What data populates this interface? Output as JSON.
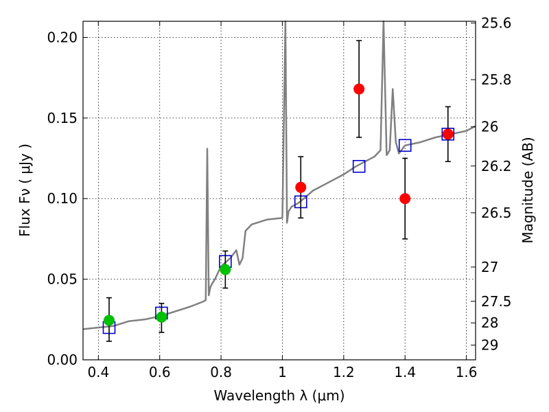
{
  "chart_data": {
    "type": "scatter",
    "xlabel": "Wavelength  λ (μm)",
    "ylabel": "Flux  Fν  ( μJy )",
    "y2label": "Magnitude (AB)",
    "xlim": [
      0.35,
      1.63
    ],
    "ylim": [
      0.0,
      0.21
    ],
    "grid": true,
    "x_ticks": [
      0.4,
      0.6,
      0.8,
      1.0,
      1.2,
      1.4,
      1.6
    ],
    "x_tick_labels": [
      "0.4",
      "0.6",
      "0.8",
      "1",
      "1.2",
      "1.4",
      "1.6"
    ],
    "y_ticks": [
      0.0,
      0.05,
      0.1,
      0.15,
      0.2
    ],
    "y_tick_labels": [
      "0.00",
      "0.05",
      "0.10",
      "0.15",
      "0.20"
    ],
    "mag_ticks": [
      25.6,
      25.8,
      26,
      26.2,
      26.5,
      27,
      27.5,
      28,
      29
    ],
    "mag_tick_labels": [
      "25.6",
      "25.8",
      "26",
      "26.2",
      "26.5",
      "27",
      "27.5",
      "28",
      "29"
    ],
    "colors": {
      "model_spectrum": "#808080",
      "model_photometry": "#0000cc",
      "detections": "#00c000",
      "upper_points": "#ff0000",
      "errorbars": "#000000"
    },
    "series": [
      {
        "kind": "model_spectrum",
        "x": [
          0.35,
          0.4,
          0.45,
          0.5,
          0.55,
          0.6,
          0.65,
          0.7,
          0.74,
          0.75,
          0.755,
          0.76,
          0.765,
          0.77,
          0.78,
          0.8,
          0.83,
          0.85,
          0.86,
          0.87,
          0.88,
          0.9,
          0.95,
          1.0,
          1.01,
          1.015,
          1.02,
          1.03,
          1.05,
          1.07,
          1.1,
          1.15,
          1.2,
          1.24,
          1.27,
          1.3,
          1.32,
          1.33,
          1.34,
          1.35,
          1.36,
          1.37,
          1.38,
          1.4,
          1.45,
          1.5,
          1.55,
          1.6,
          1.63
        ],
        "y": [
          0.019,
          0.02,
          0.021,
          0.024,
          0.025,
          0.027,
          0.03,
          0.033,
          0.036,
          0.037,
          0.131,
          0.04,
          0.045,
          0.047,
          0.05,
          0.058,
          0.063,
          0.068,
          0.059,
          0.063,
          0.08,
          0.084,
          0.087,
          0.088,
          0.21,
          0.085,
          0.092,
          0.095,
          0.097,
          0.1,
          0.105,
          0.11,
          0.115,
          0.12,
          0.123,
          0.126,
          0.13,
          0.21,
          0.127,
          0.13,
          0.168,
          0.135,
          0.128,
          0.133,
          0.135,
          0.138,
          0.14,
          0.142,
          0.145
        ]
      },
      {
        "kind": "model_photometry",
        "x": [
          0.435,
          0.606,
          0.814,
          1.06,
          1.25,
          1.4,
          1.54
        ],
        "y": [
          0.02,
          0.029,
          0.061,
          0.098,
          0.12,
          0.133,
          0.14
        ]
      },
      {
        "kind": "detections",
        "x": [
          0.435,
          0.606,
          0.814
        ],
        "y": [
          0.0245,
          0.0265,
          0.056
        ],
        "yerr_low": [
          0.013,
          0.0095,
          0.0115
        ],
        "yerr_high": [
          0.014,
          0.0085,
          0.0115
        ]
      },
      {
        "kind": "upper_points",
        "x": [
          1.06,
          1.25,
          1.4,
          1.54
        ],
        "y": [
          0.107,
          0.168,
          0.1,
          0.14
        ],
        "yerr_low": [
          0.019,
          0.03,
          0.025,
          0.017
        ],
        "yerr_high": [
          0.019,
          0.03,
          0.025,
          0.017
        ]
      }
    ]
  }
}
